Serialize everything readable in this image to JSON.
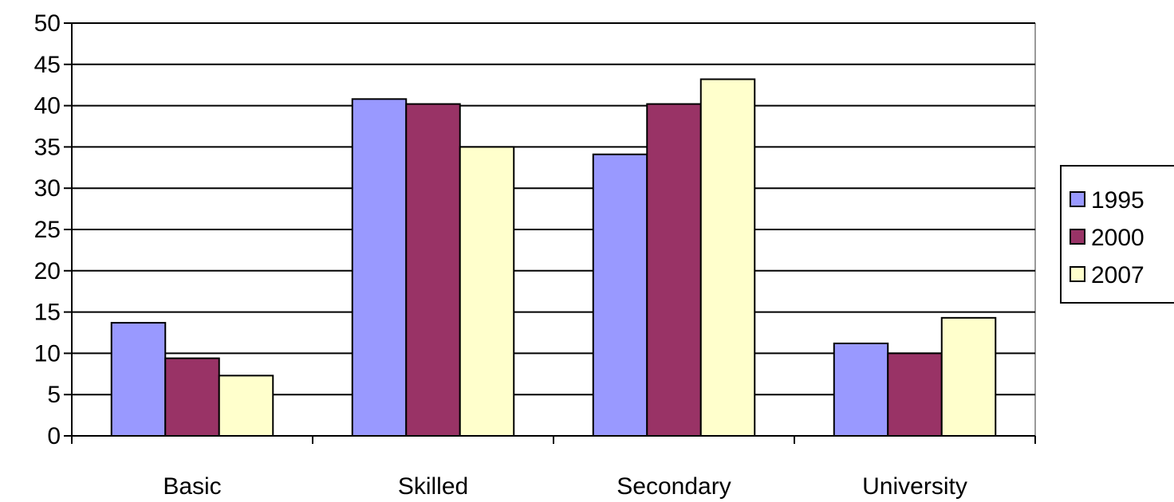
{
  "chart_data": {
    "type": "bar",
    "categories": [
      "Basic",
      "Skilled",
      "Secondary",
      "University"
    ],
    "series": [
      {
        "name": "1995",
        "values": [
          13.7,
          40.8,
          34.1,
          11.2
        ],
        "color": "#9999ff"
      },
      {
        "name": "2000",
        "values": [
          9.4,
          40.2,
          40.2,
          10.0
        ],
        "color": "#993366"
      },
      {
        "name": "2007",
        "values": [
          7.3,
          35.0,
          43.2,
          14.3
        ],
        "color": "#ffffcc"
      }
    ],
    "ylim": [
      0,
      50
    ],
    "yticks": [
      0,
      5,
      10,
      15,
      20,
      25,
      30,
      35,
      40,
      45,
      50
    ],
    "grid": true,
    "legend_position": "right",
    "title": "",
    "xlabel": "",
    "ylabel": ""
  }
}
